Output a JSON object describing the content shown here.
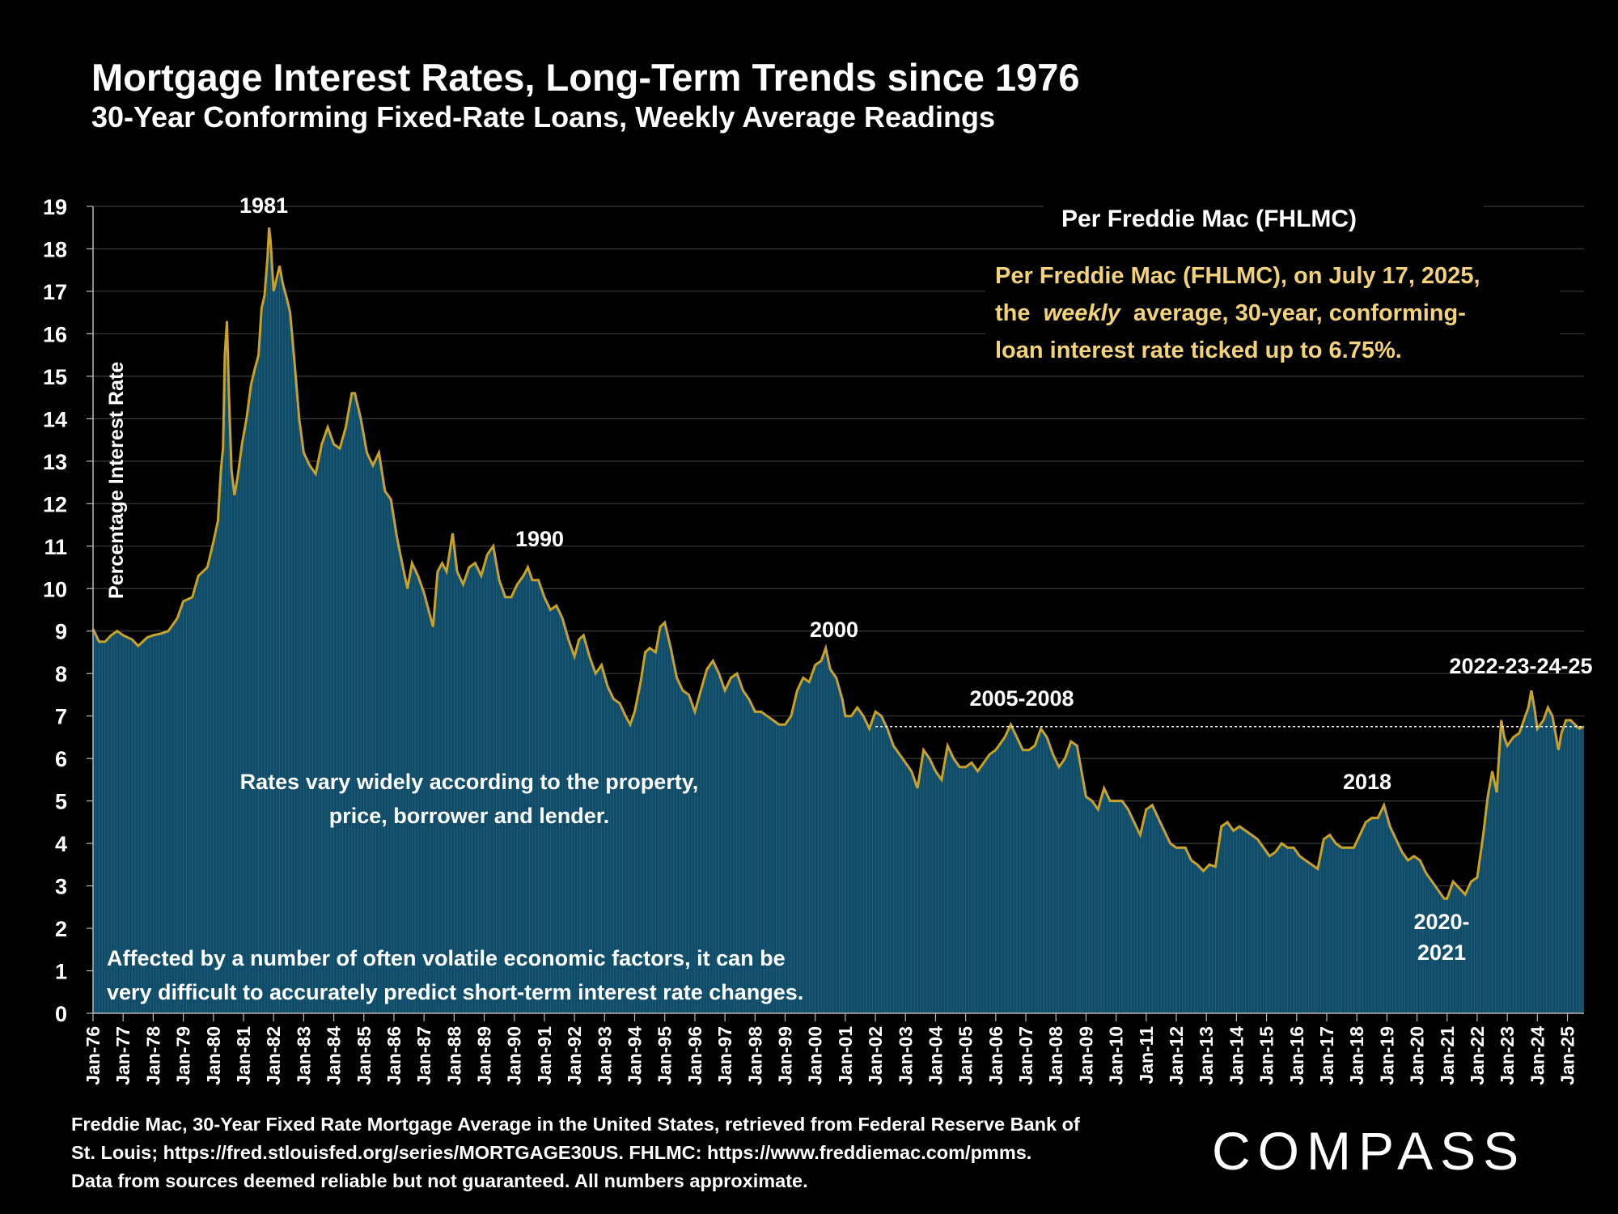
{
  "header": {
    "title": "Mortgage Interest Rates, Long-Term Trends since 1976",
    "subtitle": "30-Year Conforming Fixed-Rate Loans, Weekly Average Readings"
  },
  "inset": {
    "heading": "Per Freddie Mac (FHLMC)",
    "line1": "Per Freddie Mac (FHLMC), on July 17, 2025,",
    "line2_a": "the",
    "line2_em": "weekly",
    "line2_b": "average, 30-year, conforming-",
    "line3": "loan interest rate ticked up to 6.75%."
  },
  "notes": {
    "variation_1": "Rates vary widely according to the property,",
    "variation_2": "price, borrower and lender.",
    "volatility_1": "Affected by a number of often volatile economic factors, it can be",
    "volatility_2": "very difficult to accurately predict short-term interest rate changes."
  },
  "footer": {
    "source_1": "Freddie Mac, 30-Year Fixed Rate Mortgage Average in the United States, retrieved from Federal Reserve Bank of",
    "source_2": "St. Louis; https://fred.stlouisfed.org/series/MORTGAGE30US. FHLMC: https://www.freddiemac.com/pmms.",
    "source_3": "Data from sources deemed reliable but not guaranteed. All numbers approximate.",
    "logo": "COMPASS"
  },
  "colors": {
    "background": "#000000",
    "area_fill": "#0f4a66",
    "line": "#c9a227",
    "reference_line": "#ffffff",
    "inset_text": "#f3d27a"
  },
  "chart_data": {
    "type": "area",
    "title": "Mortgage Interest Rates, Long-Term Trends since 1976",
    "ylabel": "Percentage Interest  Rate",
    "ylim": [
      0,
      19
    ],
    "xlim": [
      1976.0,
      2025.55
    ],
    "yticks": [
      "0",
      "1",
      "2",
      "3",
      "4",
      "5",
      "6",
      "7",
      "8",
      "9",
      "10",
      "11",
      "12",
      "13",
      "14",
      "15",
      "16",
      "17",
      "18",
      "19"
    ],
    "xticks": [
      "Jan-76",
      "Jan-77",
      "Jan-78",
      "Jan-79",
      "Jan-80",
      "Jan-81",
      "Jan-82",
      "Jan-83",
      "Jan-84",
      "Jan-85",
      "Jan-86",
      "Jan-87",
      "Jan-88",
      "Jan-89",
      "Jan-90",
      "Jan-91",
      "Jan-92",
      "Jan-93",
      "Jan-94",
      "Jan-95",
      "Jan-96",
      "Jan-97",
      "Jan-98",
      "Jan-99",
      "Jan-00",
      "Jan-01",
      "Jan-02",
      "Jan-03",
      "Jan-04",
      "Jan-05",
      "Jan-06",
      "Jan-07",
      "Jan-08",
      "Jan-09",
      "Jan-10",
      "Jan-11",
      "Jan-12",
      "Jan-13",
      "Jan-14",
      "Jan-15",
      "Jan-16",
      "Jan-17",
      "Jan-18",
      "Jan-19",
      "Jan-20",
      "Jan-21",
      "Jan-22",
      "Jan-23",
      "Jan-24",
      "Jan-25"
    ],
    "grid": true,
    "reference_line": {
      "value": 6.75,
      "from_x": 2002.0
    },
    "series": [
      {
        "values": [
          [
            1976.0,
            9.05
          ],
          [
            1976.2,
            8.75
          ],
          [
            1976.4,
            8.75
          ],
          [
            1976.6,
            8.9
          ],
          [
            1976.8,
            9.0
          ],
          [
            1977.0,
            8.9
          ],
          [
            1977.3,
            8.8
          ],
          [
            1977.5,
            8.65
          ],
          [
            1977.8,
            8.85
          ],
          [
            1978.0,
            8.9
          ],
          [
            1978.3,
            8.95
          ],
          [
            1978.5,
            9.0
          ],
          [
            1978.8,
            9.3
          ],
          [
            1979.0,
            9.7
          ],
          [
            1979.3,
            9.8
          ],
          [
            1979.5,
            10.3
          ],
          [
            1979.8,
            10.5
          ],
          [
            1980.0,
            11.1
          ],
          [
            1980.15,
            11.6
          ],
          [
            1980.25,
            12.8
          ],
          [
            1980.32,
            13.3
          ],
          [
            1980.38,
            15.5
          ],
          [
            1980.45,
            16.3
          ],
          [
            1980.52,
            14.5
          ],
          [
            1980.6,
            12.8
          ],
          [
            1980.7,
            12.2
          ],
          [
            1980.8,
            12.6
          ],
          [
            1980.95,
            13.4
          ],
          [
            1981.1,
            14.0
          ],
          [
            1981.25,
            14.8
          ],
          [
            1981.35,
            15.1
          ],
          [
            1981.5,
            15.5
          ],
          [
            1981.6,
            16.6
          ],
          [
            1981.7,
            16.9
          ],
          [
            1981.8,
            17.8
          ],
          [
            1981.85,
            18.5
          ],
          [
            1981.9,
            18.2
          ],
          [
            1982.0,
            17.0
          ],
          [
            1982.1,
            17.3
          ],
          [
            1982.2,
            17.6
          ],
          [
            1982.3,
            17.2
          ],
          [
            1982.45,
            16.8
          ],
          [
            1982.55,
            16.5
          ],
          [
            1982.7,
            15.3
          ],
          [
            1982.85,
            14.0
          ],
          [
            1983.0,
            13.2
          ],
          [
            1983.2,
            12.9
          ],
          [
            1983.4,
            12.7
          ],
          [
            1983.6,
            13.4
          ],
          [
            1983.8,
            13.8
          ],
          [
            1984.0,
            13.4
          ],
          [
            1984.2,
            13.3
          ],
          [
            1984.4,
            13.8
          ],
          [
            1984.6,
            14.6
          ],
          [
            1984.7,
            14.6
          ],
          [
            1984.9,
            14.0
          ],
          [
            1985.1,
            13.2
          ],
          [
            1985.3,
            12.9
          ],
          [
            1985.5,
            13.2
          ],
          [
            1985.7,
            12.3
          ],
          [
            1985.9,
            12.1
          ],
          [
            1986.1,
            11.2
          ],
          [
            1986.3,
            10.5
          ],
          [
            1986.45,
            10.0
          ],
          [
            1986.6,
            10.6
          ],
          [
            1986.8,
            10.3
          ],
          [
            1987.0,
            9.9
          ],
          [
            1987.15,
            9.5
          ],
          [
            1987.3,
            9.1
          ],
          [
            1987.45,
            10.4
          ],
          [
            1987.6,
            10.6
          ],
          [
            1987.75,
            10.4
          ],
          [
            1987.95,
            11.3
          ],
          [
            1988.1,
            10.4
          ],
          [
            1988.3,
            10.1
          ],
          [
            1988.5,
            10.5
          ],
          [
            1988.7,
            10.6
          ],
          [
            1988.9,
            10.3
          ],
          [
            1989.1,
            10.8
          ],
          [
            1989.3,
            11.0
          ],
          [
            1989.5,
            10.2
          ],
          [
            1989.7,
            9.8
          ],
          [
            1989.9,
            9.8
          ],
          [
            1990.1,
            10.1
          ],
          [
            1990.3,
            10.3
          ],
          [
            1990.45,
            10.5
          ],
          [
            1990.6,
            10.2
          ],
          [
            1990.8,
            10.2
          ],
          [
            1991.0,
            9.8
          ],
          [
            1991.2,
            9.5
          ],
          [
            1991.4,
            9.6
          ],
          [
            1991.6,
            9.3
          ],
          [
            1991.8,
            8.8
          ],
          [
            1992.0,
            8.4
          ],
          [
            1992.15,
            8.8
          ],
          [
            1992.3,
            8.9
          ],
          [
            1992.5,
            8.4
          ],
          [
            1992.7,
            8.0
          ],
          [
            1992.9,
            8.2
          ],
          [
            1993.1,
            7.7
          ],
          [
            1993.3,
            7.4
          ],
          [
            1993.5,
            7.3
          ],
          [
            1993.7,
            7.0
          ],
          [
            1993.85,
            6.8
          ],
          [
            1994.0,
            7.1
          ],
          [
            1994.2,
            7.8
          ],
          [
            1994.35,
            8.5
          ],
          [
            1994.5,
            8.6
          ],
          [
            1994.7,
            8.5
          ],
          [
            1994.85,
            9.1
          ],
          [
            1995.0,
            9.2
          ],
          [
            1995.2,
            8.6
          ],
          [
            1995.4,
            7.9
          ],
          [
            1995.6,
            7.6
          ],
          [
            1995.8,
            7.5
          ],
          [
            1996.0,
            7.1
          ],
          [
            1996.2,
            7.6
          ],
          [
            1996.4,
            8.1
          ],
          [
            1996.6,
            8.3
          ],
          [
            1996.8,
            8.0
          ],
          [
            1997.0,
            7.6
          ],
          [
            1997.2,
            7.9
          ],
          [
            1997.4,
            8.0
          ],
          [
            1997.6,
            7.6
          ],
          [
            1997.8,
            7.4
          ],
          [
            1998.0,
            7.1
          ],
          [
            1998.2,
            7.1
          ],
          [
            1998.4,
            7.0
          ],
          [
            1998.6,
            6.9
          ],
          [
            1998.8,
            6.8
          ],
          [
            1999.0,
            6.8
          ],
          [
            1999.2,
            7.0
          ],
          [
            1999.4,
            7.6
          ],
          [
            1999.6,
            7.9
          ],
          [
            1999.8,
            7.8
          ],
          [
            2000.0,
            8.2
          ],
          [
            2000.2,
            8.3
          ],
          [
            2000.35,
            8.6
          ],
          [
            2000.5,
            8.1
          ],
          [
            2000.7,
            7.9
          ],
          [
            2000.9,
            7.4
          ],
          [
            2001.0,
            7.0
          ],
          [
            2001.2,
            7.0
          ],
          [
            2001.4,
            7.2
          ],
          [
            2001.6,
            7.0
          ],
          [
            2001.8,
            6.7
          ],
          [
            2002.0,
            7.1
          ],
          [
            2002.2,
            7.0
          ],
          [
            2002.4,
            6.7
          ],
          [
            2002.6,
            6.3
          ],
          [
            2002.8,
            6.1
          ],
          [
            2003.0,
            5.9
          ],
          [
            2003.2,
            5.7
          ],
          [
            2003.4,
            5.3
          ],
          [
            2003.6,
            6.2
          ],
          [
            2003.8,
            6.0
          ],
          [
            2004.0,
            5.7
          ],
          [
            2004.2,
            5.5
          ],
          [
            2004.4,
            6.3
          ],
          [
            2004.6,
            6.0
          ],
          [
            2004.8,
            5.8
          ],
          [
            2005.0,
            5.8
          ],
          [
            2005.2,
            5.9
          ],
          [
            2005.4,
            5.7
          ],
          [
            2005.6,
            5.9
          ],
          [
            2005.8,
            6.1
          ],
          [
            2006.0,
            6.2
          ],
          [
            2006.3,
            6.5
          ],
          [
            2006.5,
            6.8
          ],
          [
            2006.7,
            6.5
          ],
          [
            2006.9,
            6.2
          ],
          [
            2007.1,
            6.2
          ],
          [
            2007.3,
            6.3
          ],
          [
            2007.5,
            6.7
          ],
          [
            2007.7,
            6.5
          ],
          [
            2007.9,
            6.1
          ],
          [
            2008.1,
            5.8
          ],
          [
            2008.3,
            6.0
          ],
          [
            2008.5,
            6.4
          ],
          [
            2008.7,
            6.3
          ],
          [
            2008.9,
            5.5
          ],
          [
            2009.0,
            5.1
          ],
          [
            2009.2,
            5.0
          ],
          [
            2009.4,
            4.8
          ],
          [
            2009.6,
            5.3
          ],
          [
            2009.8,
            5.0
          ],
          [
            2010.0,
            5.0
          ],
          [
            2010.2,
            5.0
          ],
          [
            2010.4,
            4.8
          ],
          [
            2010.6,
            4.5
          ],
          [
            2010.8,
            4.2
          ],
          [
            2011.0,
            4.8
          ],
          [
            2011.2,
            4.9
          ],
          [
            2011.4,
            4.6
          ],
          [
            2011.6,
            4.3
          ],
          [
            2011.8,
            4.0
          ],
          [
            2012.0,
            3.9
          ],
          [
            2012.3,
            3.9
          ],
          [
            2012.5,
            3.6
          ],
          [
            2012.7,
            3.5
          ],
          [
            2012.9,
            3.35
          ],
          [
            2013.1,
            3.5
          ],
          [
            2013.3,
            3.45
          ],
          [
            2013.5,
            4.4
          ],
          [
            2013.7,
            4.5
          ],
          [
            2013.9,
            4.3
          ],
          [
            2014.1,
            4.4
          ],
          [
            2014.3,
            4.3
          ],
          [
            2014.5,
            4.2
          ],
          [
            2014.7,
            4.1
          ],
          [
            2014.9,
            3.9
          ],
          [
            2015.1,
            3.7
          ],
          [
            2015.3,
            3.8
          ],
          [
            2015.5,
            4.0
          ],
          [
            2015.7,
            3.9
          ],
          [
            2015.9,
            3.9
          ],
          [
            2016.1,
            3.7
          ],
          [
            2016.3,
            3.6
          ],
          [
            2016.5,
            3.5
          ],
          [
            2016.7,
            3.4
          ],
          [
            2016.9,
            4.1
          ],
          [
            2017.1,
            4.2
          ],
          [
            2017.3,
            4.0
          ],
          [
            2017.5,
            3.9
          ],
          [
            2017.7,
            3.9
          ],
          [
            2017.9,
            3.9
          ],
          [
            2018.1,
            4.2
          ],
          [
            2018.3,
            4.5
          ],
          [
            2018.5,
            4.6
          ],
          [
            2018.7,
            4.6
          ],
          [
            2018.9,
            4.9
          ],
          [
            2019.1,
            4.4
          ],
          [
            2019.3,
            4.1
          ],
          [
            2019.5,
            3.8
          ],
          [
            2019.7,
            3.6
          ],
          [
            2019.9,
            3.7
          ],
          [
            2020.1,
            3.6
          ],
          [
            2020.3,
            3.3
          ],
          [
            2020.5,
            3.1
          ],
          [
            2020.7,
            2.9
          ],
          [
            2020.9,
            2.7
          ],
          [
            2021.0,
            2.7
          ],
          [
            2021.2,
            3.1
          ],
          [
            2021.4,
            2.95
          ],
          [
            2021.6,
            2.8
          ],
          [
            2021.8,
            3.1
          ],
          [
            2022.0,
            3.2
          ],
          [
            2022.2,
            4.2
          ],
          [
            2022.35,
            5.1
          ],
          [
            2022.5,
            5.7
          ],
          [
            2022.65,
            5.2
          ],
          [
            2022.8,
            6.9
          ],
          [
            2022.9,
            6.5
          ],
          [
            2023.0,
            6.3
          ],
          [
            2023.2,
            6.5
          ],
          [
            2023.4,
            6.6
          ],
          [
            2023.55,
            6.9
          ],
          [
            2023.7,
            7.2
          ],
          [
            2023.8,
            7.6
          ],
          [
            2023.9,
            7.2
          ],
          [
            2024.0,
            6.7
          ],
          [
            2024.2,
            6.9
          ],
          [
            2024.35,
            7.2
          ],
          [
            2024.5,
            7.0
          ],
          [
            2024.6,
            6.6
          ],
          [
            2024.7,
            6.2
          ],
          [
            2024.8,
            6.6
          ],
          [
            2024.95,
            6.9
          ],
          [
            2025.1,
            6.9
          ],
          [
            2025.25,
            6.8
          ],
          [
            2025.4,
            6.7
          ],
          [
            2025.55,
            6.75
          ]
        ]
      }
    ],
    "annotations": [
      "1981",
      "1990",
      "2000",
      "2005-2008",
      "2018",
      "2020-",
      "2021",
      "2022-23-24-25"
    ]
  }
}
